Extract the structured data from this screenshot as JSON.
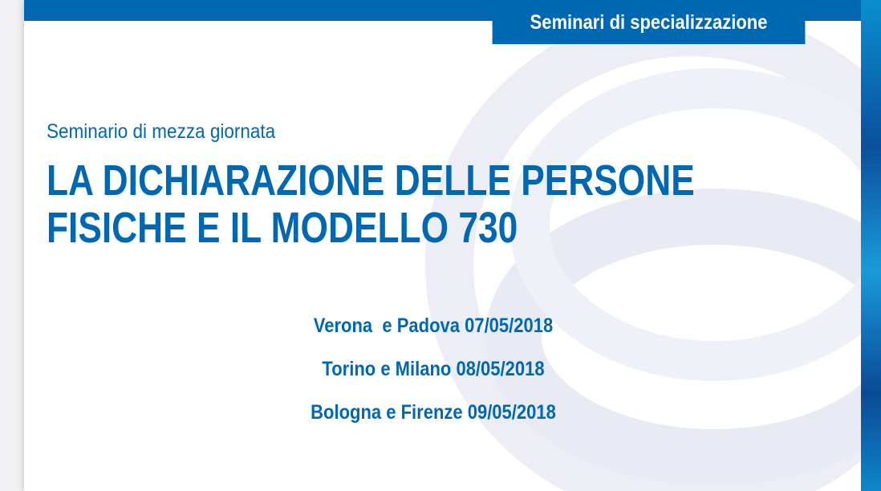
{
  "header": {
    "series_label": "Seminari di specializzazione"
  },
  "main": {
    "subtitle": "Seminario di mezza giornata",
    "title_line1": "LA DICHIARAZIONE DELLE PERSONE",
    "title_line2": "FISICHE E IL MODELLO 730",
    "dates": [
      "Verona  e Padova 07/05/2018",
      "Torino e Milano 08/05/2018",
      "Bologna e Firenze 09/05/2018"
    ]
  },
  "colors": {
    "brand_blue": "#0067b1",
    "ring_tint": "#e9ecf4"
  }
}
